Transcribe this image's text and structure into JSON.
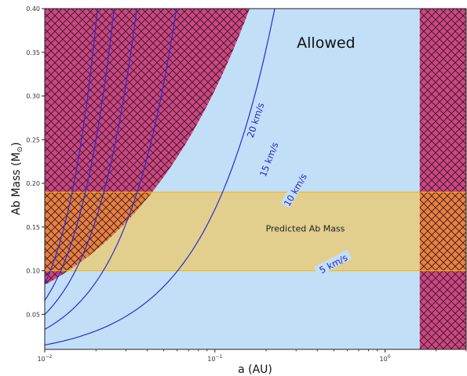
{
  "chart_data": {
    "type": "line",
    "xlabel": "a (AU)",
    "ylabel": "Ab Mass (M",
    "ylabel_symbol": "⊙",
    "ylabel_close": ")",
    "xscale": "log",
    "xlim": [
      0.01,
      3.0
    ],
    "ylim": [
      0.01,
      0.4
    ],
    "x_ticks": [
      {
        "value": 0.01,
        "base": "10",
        "exp": "−2"
      },
      {
        "value": 0.1,
        "base": "10",
        "exp": "−1"
      },
      {
        "value": 1,
        "base": "10",
        "exp": "0"
      }
    ],
    "y_ticks": [
      {
        "value": 0.05,
        "label": "0.05"
      },
      {
        "value": 0.1,
        "label": "0.10"
      },
      {
        "value": 0.15,
        "label": "0.15"
      },
      {
        "value": 0.2,
        "label": "0.20"
      },
      {
        "value": 0.25,
        "label": "0.25"
      },
      {
        "value": 0.3,
        "label": "0.30"
      },
      {
        "value": 0.35,
        "label": "0.35"
      },
      {
        "value": 0.4,
        "label": "0.40"
      }
    ],
    "regions": {
      "allowed_label": "Allowed",
      "allowed_color": "#c2dff8",
      "excluded_color": "#cc4680",
      "hatch_color": "#2a1422",
      "left_excluded": {
        "x_at_y_max": 0.16,
        "x_at_y_min": 0.0103,
        "y_bottom": 0.085
      },
      "right_excluded": {
        "x_min": 1.6
      }
    },
    "predicted_band": {
      "label": "Predicted Ab Mass",
      "y_range": [
        0.1,
        0.19
      ],
      "color": "#e7cc7a",
      "overlap_color": "#e8803e",
      "edge_color": "#f2b400"
    },
    "series": [
      {
        "name": "5 km/s",
        "y_at_xmin": 0.015,
        "k": 1.055
      },
      {
        "name": "10 km/s",
        "y_at_xmin": 0.033,
        "k": 1.4
      },
      {
        "name": "15 km/s",
        "y_at_xmin": 0.05,
        "k": 1.67
      },
      {
        "name": "20 km/s",
        "y_at_xmin": 0.066,
        "k": 1.92
      },
      {
        "name": "",
        "y_at_xmin": 0.085,
        "k": 2.17
      }
    ],
    "line_color": "#2b2bd6",
    "contour_labels": [
      {
        "text": "20 km/s",
        "x": 0.175,
        "y": 0.272,
        "angle": -72
      },
      {
        "text": "15 km/s",
        "x": 0.21,
        "y": 0.227,
        "angle": -69
      },
      {
        "text": "10 km/s",
        "x": 0.3,
        "y": 0.192,
        "angle": -60
      },
      {
        "text": "5 km/s",
        "x": 0.5,
        "y": 0.107,
        "angle": -28
      }
    ],
    "allowed_label_pos": {
      "x": 0.45,
      "y": 0.355
    },
    "band_label_pos": {
      "x": 0.34,
      "y": 0.145
    }
  }
}
